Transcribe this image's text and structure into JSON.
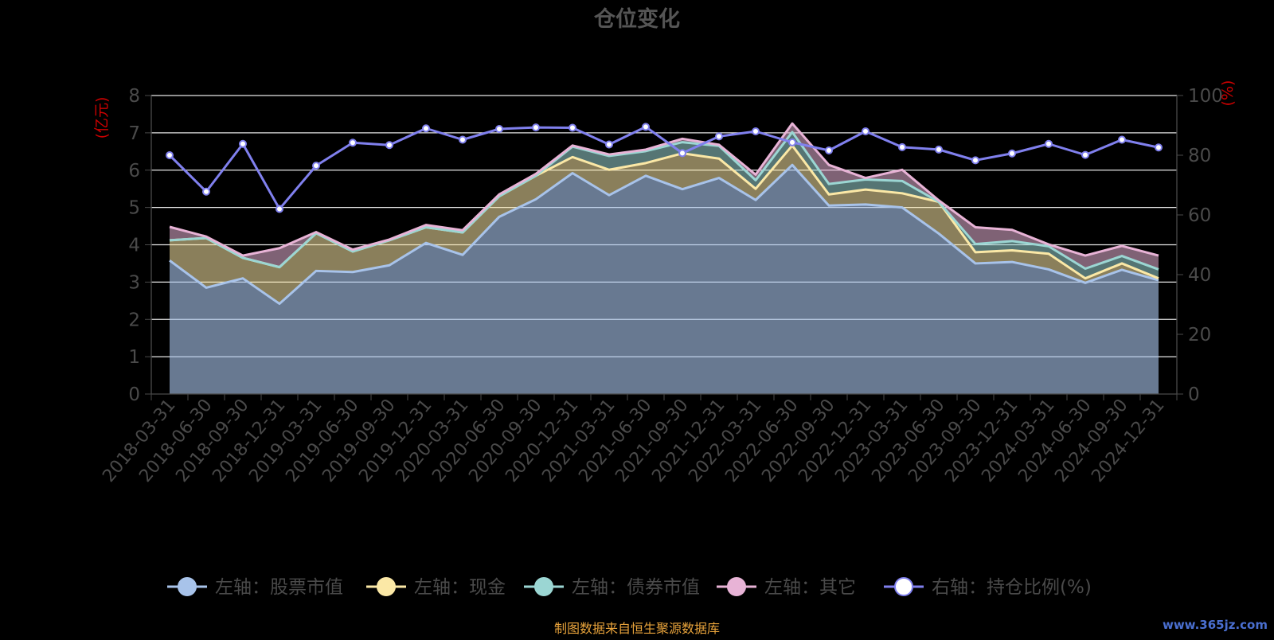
{
  "title": "仓位变化",
  "footer_source": "制图数据来自恒生聚源数据库",
  "watermark": "www.365jz.com",
  "colors": {
    "background": "#000000",
    "title": "#555555",
    "axis_text": "#4a4a4a",
    "axis_name": "#cc0000",
    "grid": "#e6e6e6",
    "stock": "#a8c3ea",
    "cash": "#fbe8a6",
    "bond": "#9bd6d3",
    "other": "#e8b3d6",
    "ratio": "#8080ee",
    "footer": "#e8a33b",
    "watermark": "#4a6fd0"
  },
  "chart_data": {
    "type": "area",
    "title": "仓位变化",
    "left_axis": {
      "name": "(亿元)",
      "min": 0,
      "max": 8,
      "ticks": [
        0,
        1,
        2,
        3,
        4,
        5,
        6,
        7,
        8
      ]
    },
    "right_axis": {
      "name": "(%)",
      "min": 0,
      "max": 100,
      "ticks": [
        0,
        20,
        40,
        60,
        80,
        100
      ]
    },
    "grid": true,
    "legend_position": "bottom",
    "categories": [
      "2018-03-31",
      "2018-06-30",
      "2018-09-30",
      "2018-12-31",
      "2019-03-31",
      "2019-06-30",
      "2019-09-30",
      "2019-12-31",
      "2020-03-31",
      "2020-06-30",
      "2020-09-30",
      "2020-12-31",
      "2021-03-31",
      "2021-06-30",
      "2021-09-30",
      "2021-12-31",
      "2022-03-31",
      "2022-06-30",
      "2022-09-30",
      "2022-12-31",
      "2023-03-31",
      "2023-06-30",
      "2023-09-30",
      "2023-12-31",
      "2024-03-31",
      "2024-06-30",
      "2024-09-30",
      "2024-12-31"
    ],
    "stacked_series": [
      {
        "name": "左轴：股票市值",
        "key": "stock",
        "axis": "left",
        "values": [
          3.58,
          2.85,
          3.1,
          2.42,
          3.3,
          3.27,
          3.45,
          4.05,
          3.73,
          4.75,
          5.22,
          5.92,
          5.33,
          5.85,
          5.49,
          5.79,
          5.2,
          6.14,
          5.05,
          5.08,
          5.0,
          4.3,
          3.5,
          3.54,
          3.34,
          2.98,
          3.33,
          3.05
        ]
      },
      {
        "name": "左轴：现金",
        "key": "cash",
        "axis": "left",
        "values": [
          0.54,
          1.33,
          0.55,
          0.98,
          1.01,
          0.55,
          0.67,
          0.42,
          0.6,
          0.55,
          0.63,
          0.43,
          0.68,
          0.34,
          0.96,
          0.52,
          0.3,
          0.52,
          0.3,
          0.4,
          0.38,
          0.85,
          0.3,
          0.31,
          0.42,
          0.12,
          0.17,
          0.05
        ]
      },
      {
        "name": "左轴：债券市值",
        "key": "bond",
        "axis": "left",
        "values": [
          0,
          0,
          0,
          0,
          0,
          0,
          0,
          0,
          0,
          0,
          0,
          0.28,
          0.37,
          0.32,
          0.3,
          0.34,
          0.23,
          0.36,
          0.28,
          0.27,
          0.33,
          0,
          0.22,
          0.25,
          0.2,
          0.26,
          0.2,
          0.24
        ]
      },
      {
        "name": "左轴：其它",
        "key": "other",
        "axis": "left",
        "values": [
          0.36,
          0.04,
          0.06,
          0.51,
          0.03,
          0.05,
          0.02,
          0.06,
          0.06,
          0.05,
          0.05,
          0.03,
          0.04,
          0.04,
          0.09,
          0.03,
          0.15,
          0.23,
          0.51,
          0.04,
          0.3,
          0.04,
          0.45,
          0.3,
          0.05,
          0.35,
          0.27,
          0.37
        ]
      }
    ],
    "line_series": {
      "name": "右轴：持仓比例(%)",
      "key": "ratio",
      "axis": "right",
      "values": [
        80.0,
        67.8,
        83.8,
        62.0,
        76.5,
        84.2,
        83.4,
        89.0,
        85.2,
        88.8,
        89.3,
        89.2,
        83.6,
        89.5,
        80.7,
        86.3,
        88.0,
        84.3,
        81.6,
        88.0,
        82.7,
        81.9,
        78.3,
        80.6,
        83.8,
        80.1,
        85.2,
        82.6
      ]
    }
  }
}
